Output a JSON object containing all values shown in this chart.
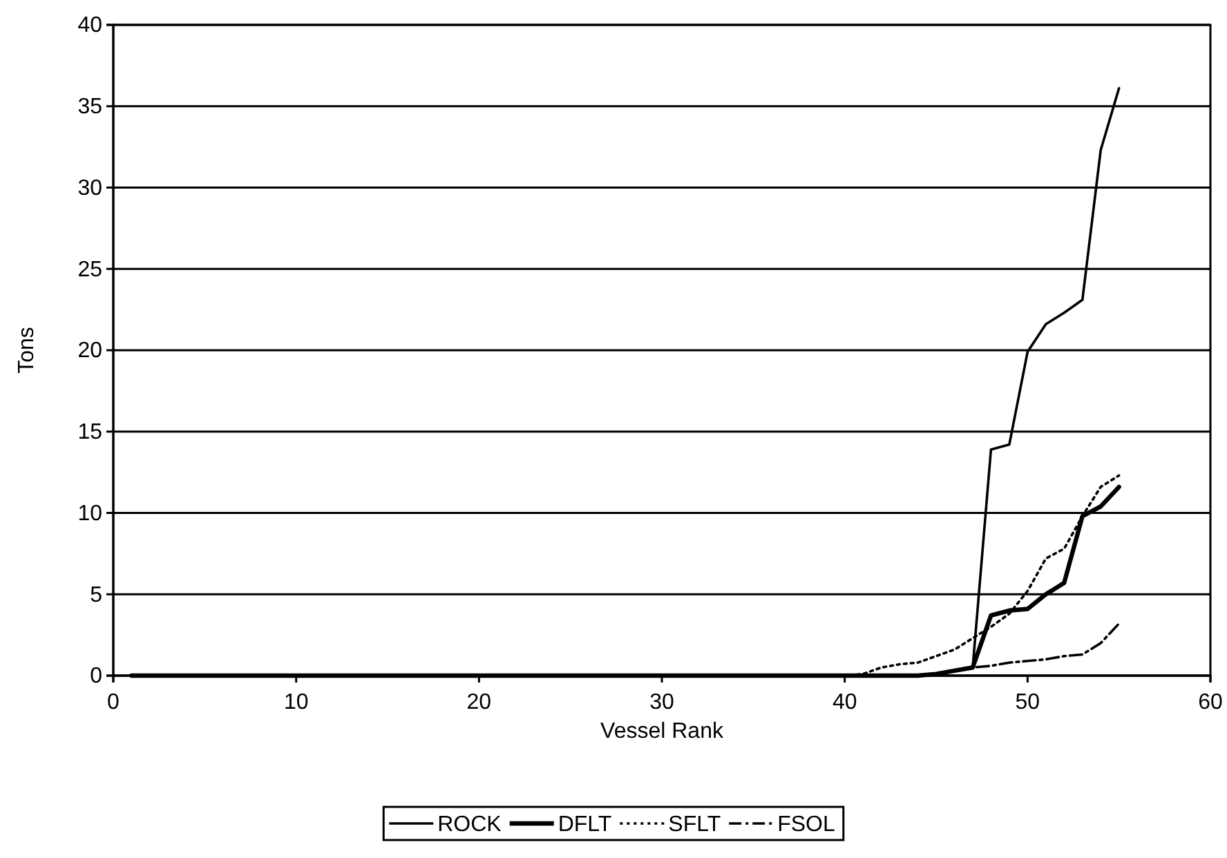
{
  "chart_data": {
    "type": "line",
    "xlabel": "Vessel Rank",
    "ylabel": "Tons",
    "x": [
      1,
      2,
      3,
      4,
      5,
      6,
      7,
      8,
      9,
      10,
      11,
      12,
      13,
      14,
      15,
      16,
      17,
      18,
      19,
      20,
      21,
      22,
      23,
      24,
      25,
      26,
      27,
      28,
      29,
      30,
      31,
      32,
      33,
      34,
      35,
      36,
      37,
      38,
      39,
      40,
      41,
      42,
      43,
      44,
      45,
      46,
      47,
      48,
      49,
      50,
      51,
      52,
      53,
      54,
      55
    ],
    "series": [
      {
        "name": "ROCK",
        "color": "#000000",
        "line_style": "solid",
        "values": [
          0,
          0,
          0,
          0,
          0,
          0,
          0,
          0,
          0,
          0,
          0,
          0,
          0,
          0,
          0,
          0,
          0,
          0,
          0,
          0,
          0,
          0,
          0,
          0,
          0,
          0,
          0,
          0,
          0,
          0,
          0,
          0,
          0,
          0,
          0,
          0,
          0,
          0,
          0,
          0,
          0,
          0,
          0,
          0,
          0.1,
          0.3,
          0.5,
          13.9,
          14.2,
          19.9,
          21.6,
          22.3,
          23.1,
          32.3,
          36.1
        ]
      },
      {
        "name": "DFLT",
        "color": "#000000",
        "line_style": "solid",
        "values": [
          0,
          0,
          0,
          0,
          0,
          0,
          0,
          0,
          0,
          0,
          0,
          0,
          0,
          0,
          0,
          0,
          0,
          0,
          0,
          0,
          0,
          0,
          0,
          0,
          0,
          0,
          0,
          0,
          0,
          0,
          0,
          0,
          0,
          0,
          0,
          0,
          0,
          0,
          0,
          0,
          0,
          0,
          0,
          0,
          0.1,
          0.3,
          0.5,
          3.7,
          4.0,
          4.1,
          5.0,
          5.7,
          9.8,
          10.4,
          11.6
        ]
      },
      {
        "name": "SFLT",
        "color": "#000000",
        "line_style": "dotted",
        "values": [
          0,
          0,
          0,
          0,
          0,
          0,
          0,
          0,
          0,
          0,
          0,
          0,
          0,
          0,
          0,
          0,
          0,
          0,
          0,
          0,
          0,
          0,
          0,
          0,
          0,
          0,
          0,
          0,
          0,
          0,
          0,
          0,
          0,
          0,
          0,
          0,
          0,
          0,
          0,
          0,
          0.1,
          0.5,
          0.7,
          0.8,
          1.2,
          1.6,
          2.3,
          3.0,
          3.8,
          5.2,
          7.2,
          7.8,
          9.8,
          11.6,
          12.3
        ]
      },
      {
        "name": "FSOL",
        "color": "#000000",
        "line_style": "dashdot",
        "values": [
          0,
          0,
          0,
          0,
          0,
          0,
          0,
          0,
          0,
          0,
          0,
          0,
          0,
          0,
          0,
          0,
          0,
          0,
          0,
          0,
          0,
          0,
          0,
          0,
          0,
          0,
          0,
          0,
          0,
          0,
          0,
          0,
          0,
          0,
          0,
          0,
          0,
          0,
          0,
          0,
          0,
          0,
          0,
          0,
          0.1,
          0.3,
          0.5,
          0.6,
          0.8,
          0.9,
          1.0,
          1.2,
          1.3,
          2.0,
          3.2
        ]
      }
    ],
    "xlim": [
      0,
      60
    ],
    "xticks": [
      0,
      10,
      20,
      30,
      40,
      50,
      60
    ],
    "ylim": [
      0,
      40
    ],
    "yticks": [
      0,
      5,
      10,
      15,
      20,
      25,
      30,
      35,
      40
    ],
    "grid": "y",
    "legend": "bottom",
    "marker": "none"
  }
}
